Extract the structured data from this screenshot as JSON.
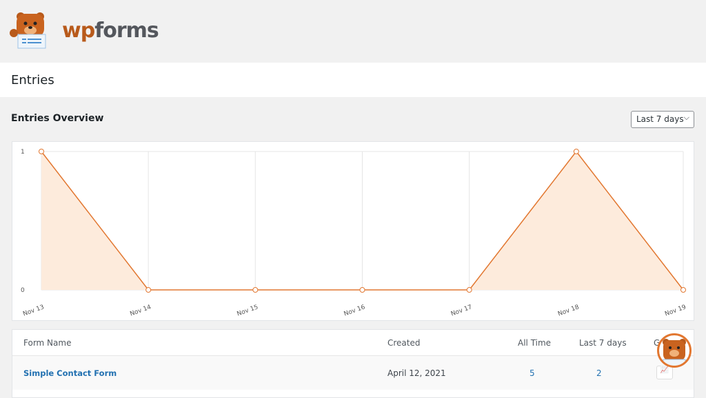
{
  "brand": {
    "logo_wp": "wp",
    "logo_forms": "forms",
    "accent": "#e27730"
  },
  "header": {
    "title": "Entries"
  },
  "overview": {
    "title": "Entries Overview",
    "range_select": "Last 7 days"
  },
  "chart_data": {
    "type": "area",
    "x": [
      "Nov 13",
      "Nov 14",
      "Nov 15",
      "Nov 16",
      "Nov 17",
      "Nov 18",
      "Nov 19"
    ],
    "values": [
      1,
      0,
      0,
      0,
      0,
      1,
      0
    ],
    "ylim": [
      0,
      1
    ],
    "yticks": [
      "0",
      "1"
    ],
    "grid": true,
    "line_color": "#e27730",
    "fill_color": "#fdebdc"
  },
  "table": {
    "headers": [
      "Form Name",
      "Created",
      "All Time",
      "Last 7 days",
      "Graph"
    ],
    "rows": [
      {
        "name": "Simple Contact Form",
        "created": "April 12, 2021",
        "all_time": "5",
        "last7": "2"
      }
    ]
  }
}
